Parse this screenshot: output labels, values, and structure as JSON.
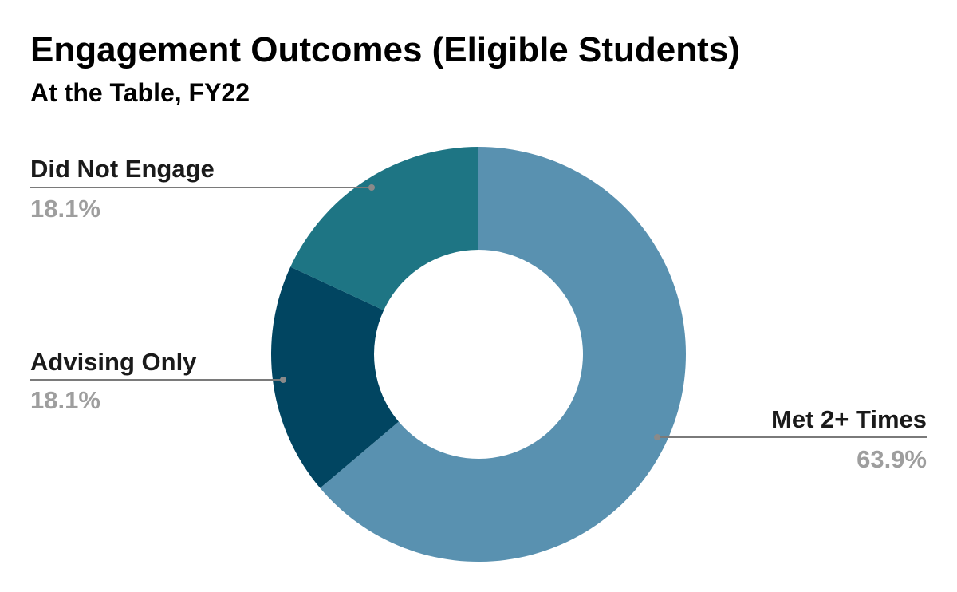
{
  "chart_data": {
    "type": "pie",
    "style": "donut",
    "title": "Engagement Outcomes (Eligible Students)",
    "subtitle": "At the Table, FY22",
    "slices": [
      {
        "label": "Met 2+ Times",
        "value": 63.9,
        "value_label": "63.9%",
        "color": "#5991b0"
      },
      {
        "label": "Advising Only",
        "value": 18.1,
        "value_label": "18.1%",
        "color": "#014561"
      },
      {
        "label": "Did Not Engage",
        "value": 18.1,
        "value_label": "18.1%",
        "color": "#1e7584"
      }
    ],
    "start_angle": "12 o'clock",
    "direction": "clockwise",
    "label_placement": "outside with leader lines"
  }
}
